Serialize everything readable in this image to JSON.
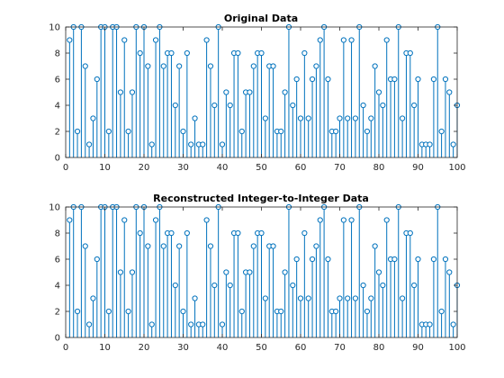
{
  "figure": {
    "background": "#ffffff"
  },
  "chart_data": [
    {
      "type": "stem",
      "title": "Original Data",
      "xlabel": "",
      "ylabel": "",
      "xlim": [
        0,
        100
      ],
      "ylim": [
        0,
        10
      ],
      "xticks": [
        "0",
        "10",
        "20",
        "30",
        "40",
        "50",
        "60",
        "70",
        "80",
        "90",
        "100"
      ],
      "yticks": [
        "0",
        "2",
        "4",
        "6",
        "8",
        "10"
      ],
      "grid": false,
      "color": "#0072BD",
      "x": [
        1,
        2,
        3,
        4,
        5,
        6,
        7,
        8,
        9,
        10,
        11,
        12,
        13,
        14,
        15,
        16,
        17,
        18,
        19,
        20,
        21,
        22,
        23,
        24,
        25,
        26,
        27,
        28,
        29,
        30,
        31,
        32,
        33,
        34,
        35,
        36,
        37,
        38,
        39,
        40,
        41,
        42,
        43,
        44,
        45,
        46,
        47,
        48,
        49,
        50,
        51,
        52,
        53,
        54,
        55,
        56,
        57,
        58,
        59,
        60,
        61,
        62,
        63,
        64,
        65,
        66,
        67,
        68,
        69,
        70,
        71,
        72,
        73,
        74,
        75,
        76,
        77,
        78,
        79,
        80,
        81,
        82,
        83,
        84,
        85,
        86,
        87,
        88,
        89,
        90,
        91,
        92,
        93,
        94,
        95,
        96,
        97,
        98,
        99,
        100
      ],
      "y": [
        9,
        10,
        2,
        10,
        7,
        1,
        3,
        6,
        10,
        10,
        2,
        10,
        10,
        5,
        9,
        2,
        5,
        10,
        8,
        10,
        7,
        1,
        9,
        10,
        7,
        8,
        8,
        4,
        7,
        2,
        8,
        1,
        3,
        1,
        1,
        9,
        7,
        4,
        10,
        1,
        5,
        4,
        8,
        8,
        2,
        5,
        5,
        7,
        8,
        8,
        3,
        7,
        7,
        2,
        2,
        5,
        10,
        4,
        6,
        3,
        8,
        3,
        6,
        7,
        9,
        10,
        6,
        2,
        2,
        3,
        9,
        3,
        9,
        3,
        10,
        4,
        2,
        3,
        7,
        5,
        4,
        9,
        6,
        6,
        10,
        3,
        8,
        8,
        4,
        6,
        1,
        1,
        1,
        6,
        10,
        2,
        6,
        5,
        1,
        4
      ]
    },
    {
      "type": "stem",
      "title": "Reconstructed Integer-to-Integer Data",
      "xlabel": "",
      "ylabel": "",
      "xlim": [
        0,
        100
      ],
      "ylim": [
        0,
        10
      ],
      "xticks": [
        "0",
        "10",
        "20",
        "30",
        "40",
        "50",
        "60",
        "70",
        "80",
        "90",
        "100"
      ],
      "yticks": [
        "0",
        "2",
        "4",
        "6",
        "8",
        "10"
      ],
      "grid": false,
      "color": "#0072BD",
      "x": [
        1,
        2,
        3,
        4,
        5,
        6,
        7,
        8,
        9,
        10,
        11,
        12,
        13,
        14,
        15,
        16,
        17,
        18,
        19,
        20,
        21,
        22,
        23,
        24,
        25,
        26,
        27,
        28,
        29,
        30,
        31,
        32,
        33,
        34,
        35,
        36,
        37,
        38,
        39,
        40,
        41,
        42,
        43,
        44,
        45,
        46,
        47,
        48,
        49,
        50,
        51,
        52,
        53,
        54,
        55,
        56,
        57,
        58,
        59,
        60,
        61,
        62,
        63,
        64,
        65,
        66,
        67,
        68,
        69,
        70,
        71,
        72,
        73,
        74,
        75,
        76,
        77,
        78,
        79,
        80,
        81,
        82,
        83,
        84,
        85,
        86,
        87,
        88,
        89,
        90,
        91,
        92,
        93,
        94,
        95,
        96,
        97,
        98,
        99,
        100
      ],
      "y": [
        9,
        10,
        2,
        10,
        7,
        1,
        3,
        6,
        10,
        10,
        2,
        10,
        10,
        5,
        9,
        2,
        5,
        10,
        8,
        10,
        7,
        1,
        9,
        10,
        7,
        8,
        8,
        4,
        7,
        2,
        8,
        1,
        3,
        1,
        1,
        9,
        7,
        4,
        10,
        1,
        5,
        4,
        8,
        8,
        2,
        5,
        5,
        7,
        8,
        8,
        3,
        7,
        7,
        2,
        2,
        5,
        10,
        4,
        6,
        3,
        8,
        3,
        6,
        7,
        9,
        10,
        6,
        2,
        2,
        3,
        9,
        3,
        9,
        3,
        10,
        4,
        2,
        3,
        7,
        5,
        4,
        9,
        6,
        6,
        10,
        3,
        8,
        8,
        4,
        6,
        1,
        1,
        1,
        6,
        10,
        2,
        6,
        5,
        1,
        4
      ]
    }
  ]
}
